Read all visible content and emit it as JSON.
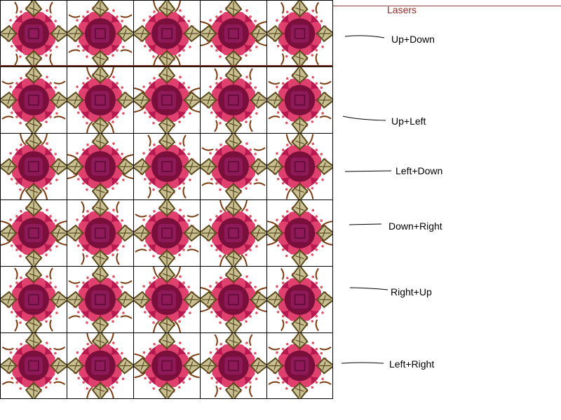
{
  "title": "Lasers",
  "labels": [
    "Up+Down",
    "Up+Left",
    "Left+Down",
    "Down+Right",
    "Right+Up",
    "Left+Right"
  ],
  "grid": {
    "rows": 6,
    "cols": 5
  },
  "colors": {
    "flower_dark": "#7a0f3c",
    "flower_mid": "#b5194f",
    "flower_light": "#e0406e",
    "center": "#8e1a5a",
    "leaf": "#c9bf95",
    "leaf_dark": "#5a4a1a",
    "vine": "#7a3a10",
    "dots": "#e05060",
    "title": "#8b2a2a"
  }
}
